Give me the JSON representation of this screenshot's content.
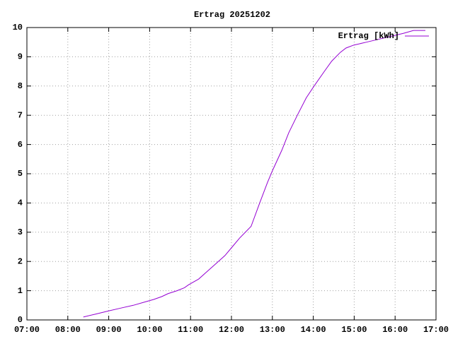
{
  "chart_data": {
    "type": "line",
    "title": "Ertrag 20251202",
    "x": [
      8.38,
      8.68,
      8.97,
      9.28,
      9.6,
      9.85,
      10.1,
      10.3,
      10.45,
      10.67,
      10.85,
      10.95,
      11.2,
      11.36,
      11.6,
      11.84,
      12.02,
      12.2,
      12.48,
      12.69,
      12.88,
      13.0,
      13.23,
      13.4,
      13.61,
      13.83,
      14.02,
      14.27,
      14.45,
      14.66,
      14.8,
      14.99,
      15.3,
      15.6,
      15.9,
      16.2,
      16.45,
      16.74
    ],
    "series": [
      {
        "name": "Ertrag [kWh]",
        "color": "#9400d3",
        "values": [
          0.1,
          0.2,
          0.3,
          0.4,
          0.5,
          0.6,
          0.7,
          0.8,
          0.9,
          1.0,
          1.1,
          1.2,
          1.4,
          1.6,
          1.9,
          2.2,
          2.5,
          2.8,
          3.2,
          4.0,
          4.7,
          5.1,
          5.8,
          6.4,
          7.0,
          7.6,
          8.0,
          8.5,
          8.85,
          9.15,
          9.3,
          9.4,
          9.5,
          9.6,
          9.7,
          9.8,
          9.9,
          9.9
        ]
      }
    ],
    "xlim": [
      7,
      17
    ],
    "xticks": [
      {
        "value": 7,
        "label": "07:00"
      },
      {
        "value": 8,
        "label": "08:00"
      },
      {
        "value": 9,
        "label": "09:00"
      },
      {
        "value": 10,
        "label": "10:00"
      },
      {
        "value": 11,
        "label": "11:00"
      },
      {
        "value": 12,
        "label": "12:00"
      },
      {
        "value": 13,
        "label": "13:00"
      },
      {
        "value": 14,
        "label": "14:00"
      },
      {
        "value": 15,
        "label": "15:00"
      },
      {
        "value": 16,
        "label": "16:00"
      },
      {
        "value": 17,
        "label": "17:00"
      }
    ],
    "ylim": [
      0,
      10
    ],
    "yticks": [
      0,
      1,
      2,
      3,
      4,
      5,
      6,
      7,
      8,
      9,
      10
    ],
    "grid": true,
    "legend": "top-right"
  }
}
